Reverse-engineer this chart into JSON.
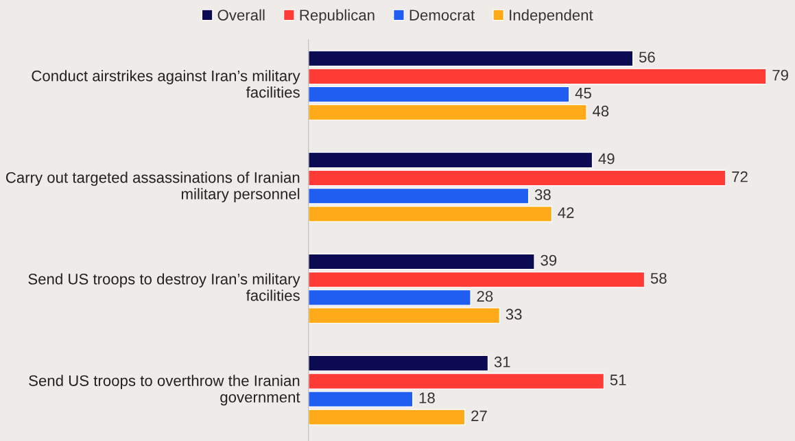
{
  "chart_data": {
    "type": "bar",
    "orientation": "horizontal",
    "data_labels": true,
    "legend": "top",
    "categories": [
      "Conduct airstrikes against Iran’s military facilities",
      "Carry out targeted assassinations of Iranian military personnel",
      "Send US troops to destroy Iran’s military facilities",
      "Send US troops to overthrow the Iranian government"
    ],
    "series": [
      {
        "name": "Overall",
        "color": "#0b0a52",
        "values": [
          56,
          49,
          39,
          31
        ]
      },
      {
        "name": "Republican",
        "color": "#ff3b36",
        "values": [
          79,
          72,
          58,
          51
        ]
      },
      {
        "name": "Democrat",
        "color": "#1f5ef0",
        "values": [
          45,
          38,
          28,
          18
        ]
      },
      {
        "name": "Independent",
        "color": "#ffab19",
        "values": [
          48,
          42,
          33,
          27
        ]
      }
    ]
  }
}
